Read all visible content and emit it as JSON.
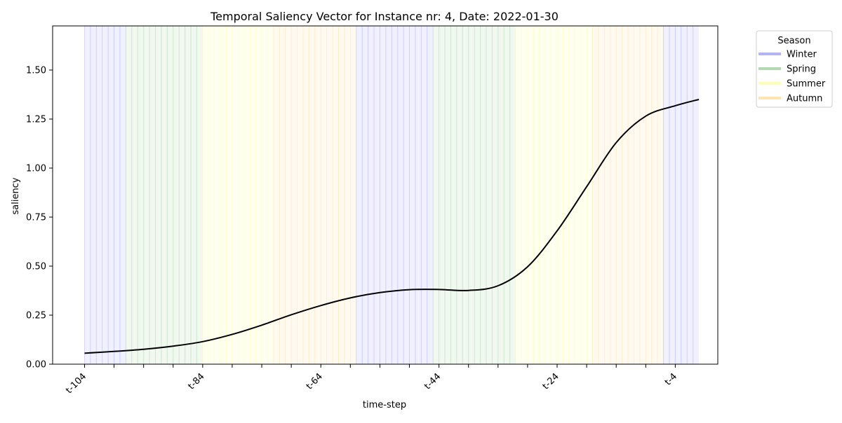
{
  "chart_data": {
    "type": "line",
    "title": "Temporal Saliency Vector for Instance nr: 4, Date: 2022-01-30",
    "xlabel": "time-step",
    "ylabel": "saliency",
    "ylim": [
      0,
      1.725
    ],
    "xlim": [
      -109.4,
      3.2
    ],
    "y_ticks": [
      "0.00",
      "0.25",
      "0.50",
      "0.75",
      "1.00",
      "1.25",
      "1.50"
    ],
    "x_ticks": [
      {
        "value": -104,
        "label": "t-104"
      },
      {
        "value": -99,
        "label": ""
      },
      {
        "value": -94,
        "label": ""
      },
      {
        "value": -89,
        "label": ""
      },
      {
        "value": -84,
        "label": "t-84"
      },
      {
        "value": -79,
        "label": ""
      },
      {
        "value": -74,
        "label": ""
      },
      {
        "value": -69,
        "label": ""
      },
      {
        "value": -64,
        "label": "t-64"
      },
      {
        "value": -59,
        "label": ""
      },
      {
        "value": -54,
        "label": ""
      },
      {
        "value": -49,
        "label": ""
      },
      {
        "value": -44,
        "label": "t-44"
      },
      {
        "value": -39,
        "label": ""
      },
      {
        "value": -34,
        "label": ""
      },
      {
        "value": -29,
        "label": ""
      },
      {
        "value": -24,
        "label": "t-24"
      },
      {
        "value": -19,
        "label": ""
      },
      {
        "value": -14,
        "label": ""
      },
      {
        "value": -9,
        "label": ""
      },
      {
        "value": -4,
        "label": "t-4"
      }
    ],
    "seasons": [
      {
        "season": "Winter",
        "start": -104,
        "end": -97
      },
      {
        "season": "Spring",
        "start": -97,
        "end": -84
      },
      {
        "season": "Summer",
        "start": -84,
        "end": -72
      },
      {
        "season": "Autumn",
        "start": -72,
        "end": -58
      },
      {
        "season": "Winter",
        "start": -58,
        "end": -45
      },
      {
        "season": "Spring",
        "start": -45,
        "end": -31
      },
      {
        "season": "Summer",
        "start": -31,
        "end": -18
      },
      {
        "season": "Autumn",
        "start": -18,
        "end": -6
      },
      {
        "season": "Winter",
        "start": -6,
        "end": 0
      }
    ],
    "season_colors": {
      "Winter": "#0000ff",
      "Spring": "#008000",
      "Summer": "#ffff00",
      "Autumn": "#ffa500"
    },
    "legend": {
      "title": "Season",
      "placement": "outside-top-right",
      "entries": [
        "Winter",
        "Spring",
        "Summer",
        "Autumn"
      ]
    },
    "series": [
      {
        "color": "#000000",
        "x": [
          -104,
          -99,
          -94,
          -89,
          -84,
          -79,
          -74,
          -69,
          -64,
          -59,
          -54,
          -49,
          -44,
          -39,
          -34,
          -29,
          -24,
          -19,
          -14,
          -9,
          -4,
          0
        ],
        "y": [
          0.056,
          0.065,
          0.076,
          0.092,
          0.115,
          0.152,
          0.199,
          0.252,
          0.299,
          0.338,
          0.365,
          0.38,
          0.381,
          0.376,
          0.4,
          0.497,
          0.68,
          0.905,
          1.13,
          1.265,
          1.318,
          1.35
        ]
      }
    ]
  }
}
